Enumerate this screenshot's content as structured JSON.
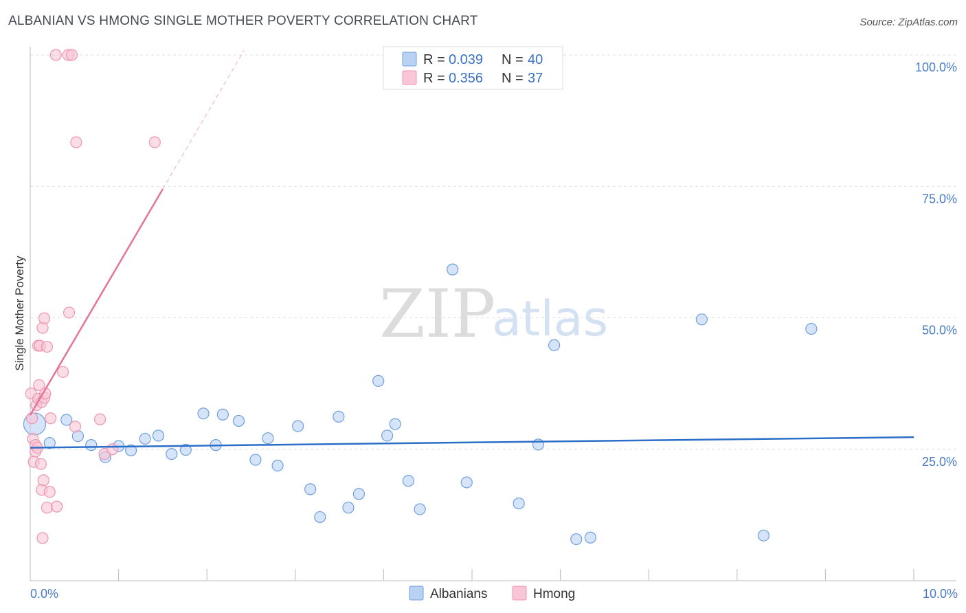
{
  "chart_data": {
    "type": "scatter",
    "title": "ALBANIAN VS HMONG SINGLE MOTHER POVERTY CORRELATION CHART",
    "source": "Source: ZipAtlas.com",
    "ylabel": "Single Mother Poverty",
    "xlabel": "",
    "xlim": [
      0,
      10
    ],
    "ylim": [
      0,
      100
    ],
    "x_ticks": [
      "0.0%",
      "10.0%"
    ],
    "y_ticks": [
      {
        "value": 25,
        "label": "25.0%"
      },
      {
        "value": 50,
        "label": "50.0%"
      },
      {
        "value": 75,
        "label": "75.0%"
      },
      {
        "value": 100,
        "label": "100.0%"
      }
    ],
    "watermark": {
      "part1": "ZIP",
      "part2": "atlas"
    },
    "legend": [
      {
        "series": "Albanians",
        "r_label": "R =",
        "r_value": "0.039",
        "n_label": "N =",
        "n_value": "40"
      },
      {
        "series": "Hmong",
        "r_label": "R =",
        "r_value": "0.356",
        "n_label": "N =",
        "n_value": "37"
      }
    ],
    "series": [
      {
        "name": "Albanians",
        "color": "#6f9fe0",
        "fill": "#b9d2f3",
        "trend": {
          "x0": 0.0,
          "y0": 25.3,
          "x1": 10.0,
          "y1": 27.3,
          "color": "#2a6ec8"
        },
        "points": [
          {
            "x": 0.05,
            "y": 29.8,
            "big": true
          },
          {
            "x": 0.22,
            "y": 26.2
          },
          {
            "x": 0.41,
            "y": 30.6
          },
          {
            "x": 0.54,
            "y": 27.5
          },
          {
            "x": 0.69,
            "y": 25.8
          },
          {
            "x": 0.85,
            "y": 23.5
          },
          {
            "x": 1.0,
            "y": 25.6
          },
          {
            "x": 1.14,
            "y": 24.8
          },
          {
            "x": 1.3,
            "y": 27.0
          },
          {
            "x": 1.45,
            "y": 27.6
          },
          {
            "x": 1.6,
            "y": 24.1
          },
          {
            "x": 1.76,
            "y": 24.9
          },
          {
            "x": 1.96,
            "y": 31.8
          },
          {
            "x": 2.1,
            "y": 25.8
          },
          {
            "x": 2.18,
            "y": 31.6
          },
          {
            "x": 2.36,
            "y": 30.4
          },
          {
            "x": 2.55,
            "y": 23.0
          },
          {
            "x": 2.69,
            "y": 27.1
          },
          {
            "x": 2.8,
            "y": 21.9
          },
          {
            "x": 3.03,
            "y": 29.4
          },
          {
            "x": 3.17,
            "y": 17.4
          },
          {
            "x": 3.28,
            "y": 12.1
          },
          {
            "x": 3.49,
            "y": 31.2
          },
          {
            "x": 3.6,
            "y": 13.9
          },
          {
            "x": 3.72,
            "y": 16.5
          },
          {
            "x": 3.94,
            "y": 38.0
          },
          {
            "x": 4.04,
            "y": 27.6
          },
          {
            "x": 4.13,
            "y": 29.8
          },
          {
            "x": 4.28,
            "y": 19.0
          },
          {
            "x": 4.41,
            "y": 13.6
          },
          {
            "x": 4.78,
            "y": 59.2
          },
          {
            "x": 4.94,
            "y": 18.7
          },
          {
            "x": 5.53,
            "y": 14.7
          },
          {
            "x": 5.75,
            "y": 25.9
          },
          {
            "x": 5.93,
            "y": 44.8
          },
          {
            "x": 6.18,
            "y": 7.9
          },
          {
            "x": 6.34,
            "y": 8.2
          },
          {
            "x": 7.6,
            "y": 49.7
          },
          {
            "x": 8.3,
            "y": 8.6
          },
          {
            "x": 8.84,
            "y": 47.9
          }
        ]
      },
      {
        "name": "Hmong",
        "color": "#ef94b0",
        "fill": "#f8c6d6",
        "trend": {
          "x0": 0.0,
          "y0": 31.5,
          "x1": 1.5,
          "y1": 74.5,
          "dash_to_x": 2.42,
          "color": "#e3739b"
        },
        "points": [
          {
            "x": 0.01,
            "y": 35.6
          },
          {
            "x": 0.02,
            "y": 30.9
          },
          {
            "x": 0.03,
            "y": 27.0
          },
          {
            "x": 0.04,
            "y": 22.6
          },
          {
            "x": 0.06,
            "y": 25.8
          },
          {
            "x": 0.06,
            "y": 24.6
          },
          {
            "x": 0.07,
            "y": 33.4
          },
          {
            "x": 0.08,
            "y": 25.3
          },
          {
            "x": 0.09,
            "y": 34.6
          },
          {
            "x": 0.09,
            "y": 44.7
          },
          {
            "x": 0.1,
            "y": 37.2
          },
          {
            "x": 0.11,
            "y": 44.7
          },
          {
            "x": 0.12,
            "y": 22.2
          },
          {
            "x": 0.13,
            "y": 34.0
          },
          {
            "x": 0.13,
            "y": 17.3
          },
          {
            "x": 0.14,
            "y": 48.1
          },
          {
            "x": 0.14,
            "y": 8.1
          },
          {
            "x": 0.15,
            "y": 19.1
          },
          {
            "x": 0.16,
            "y": 34.8
          },
          {
            "x": 0.16,
            "y": 49.9
          },
          {
            "x": 0.17,
            "y": 35.6
          },
          {
            "x": 0.19,
            "y": 13.9
          },
          {
            "x": 0.19,
            "y": 44.5
          },
          {
            "x": 0.22,
            "y": 16.9
          },
          {
            "x": 0.23,
            "y": 30.9
          },
          {
            "x": 0.29,
            "y": 100.0
          },
          {
            "x": 0.3,
            "y": 14.1
          },
          {
            "x": 0.37,
            "y": 39.7
          },
          {
            "x": 0.43,
            "y": 100.0
          },
          {
            "x": 0.44,
            "y": 51.0
          },
          {
            "x": 0.47,
            "y": 100.0
          },
          {
            "x": 0.51,
            "y": 29.3
          },
          {
            "x": 0.52,
            "y": 83.4
          },
          {
            "x": 0.79,
            "y": 30.7
          },
          {
            "x": 0.84,
            "y": 24.1
          },
          {
            "x": 0.93,
            "y": 25.0
          },
          {
            "x": 1.41,
            "y": 83.4
          }
        ]
      }
    ]
  }
}
